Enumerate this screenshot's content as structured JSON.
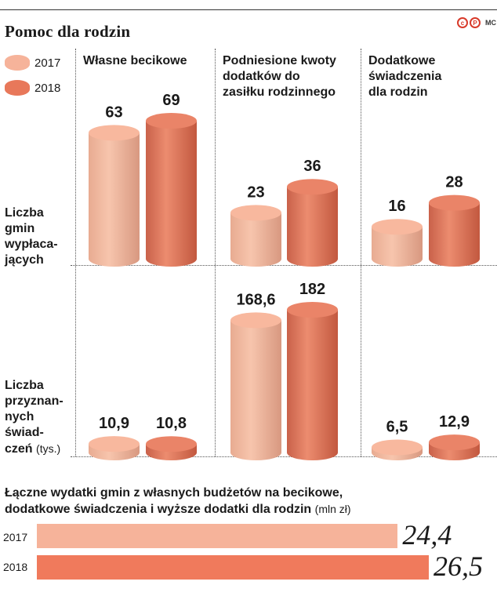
{
  "title": "Pomoc dla rodzin",
  "logo": {
    "mark": "P",
    "agency": "MC"
  },
  "colors": {
    "y2017": "#f6b39a",
    "y2018": "#e8785a"
  },
  "legend": [
    {
      "label": "2017"
    },
    {
      "label": "2018"
    }
  ],
  "columns": [
    {
      "heading": [
        "Własne becikowe"
      ]
    },
    {
      "heading": [
        "Podniesione kwoty",
        "dodatków do",
        "zasiłku rodzinnego"
      ]
    },
    {
      "heading": [
        "Dodatkowe",
        "świadczenia",
        "dla rodzin"
      ]
    }
  ],
  "rows": [
    {
      "label": [
        "Liczba",
        "gmin",
        "wypłaca-",
        "jących"
      ],
      "unit": ""
    },
    {
      "label": [
        "Liczba",
        "przyznan-",
        "nych",
        "świad-",
        "czeń"
      ],
      "unit": "(tys.)"
    }
  ],
  "chart_data": {
    "type": "bar",
    "categories": [
      "Własne becikowe",
      "Podniesione kwoty dodatków do zasiłku rodzinnego",
      "Dodatkowe świadczenia dla rodzin"
    ],
    "series_years": [
      "2017",
      "2018"
    ],
    "panels": [
      {
        "metric": "Liczba gmin wypłacających",
        "series": [
          {
            "name": "2017",
            "values": [
              63,
              23,
              16
            ],
            "labels": [
              "63",
              "23",
              "16"
            ]
          },
          {
            "name": "2018",
            "values": [
              69,
              36,
              28
            ],
            "labels": [
              "69",
              "36",
              "28"
            ]
          }
        ]
      },
      {
        "metric": "Liczba przyznanych świadczeń (tys.)",
        "series": [
          {
            "name": "2017",
            "values": [
              10.9,
              168.6,
              6.5
            ],
            "labels": [
              "10,9",
              "168,6",
              "6,5"
            ]
          },
          {
            "name": "2018",
            "values": [
              10.8,
              182,
              12.9
            ],
            "labels": [
              "10,8",
              "182",
              "12,9"
            ]
          }
        ]
      }
    ]
  },
  "summary": {
    "title_line1": "Łączne wydatki gmin z własnych budżetów na becikowe,",
    "title_line2": "dodatkowe świadczenia i wyższe dodatki dla rodzin",
    "unit": "(mln zł)",
    "bars": [
      {
        "year": "2017",
        "value": 24.4,
        "label": "24,4"
      },
      {
        "year": "2018",
        "value": 26.5,
        "label": "26,5"
      }
    ]
  }
}
